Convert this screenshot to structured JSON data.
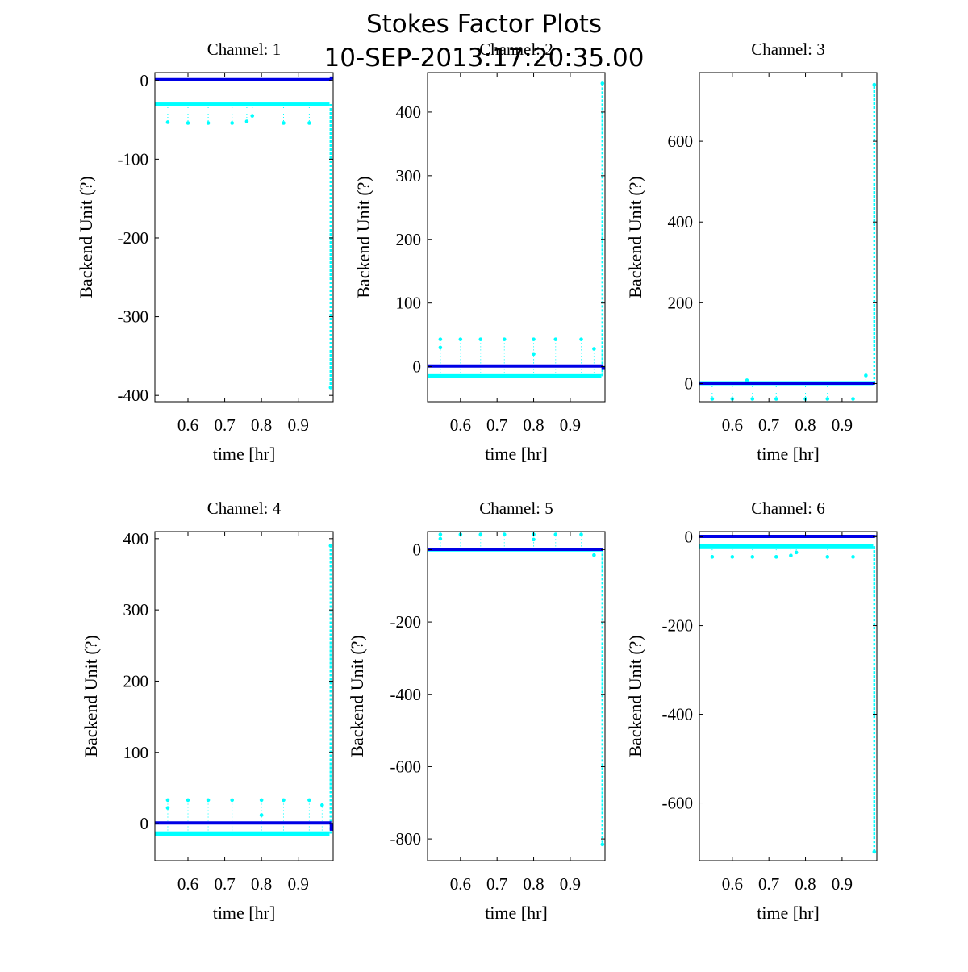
{
  "figure": {
    "title": "Stokes Factor Plots",
    "subtitle": "10-SEP-2013:17:20:35.00"
  },
  "colors": {
    "cyan_series": "#00ffff",
    "blue_series": "#0000e6",
    "axes": "#000000",
    "background": "#ffffff"
  },
  "chart_data": [
    {
      "type": "scatter",
      "title": "Channel: 1",
      "xlabel": "time [hr]",
      "ylabel": "Backend Unit (?)",
      "xlim": [
        0.51,
        0.995
      ],
      "ylim": [
        -408,
        10
      ],
      "xticks": [
        0.6,
        0.7,
        0.8,
        0.9
      ],
      "xtick_labels": [
        "0.6",
        "0.7",
        "0.8",
        "0.9"
      ],
      "yticks": [
        -400,
        -300,
        -200,
        -100,
        0
      ],
      "ytick_labels": [
        "-400",
        "-300",
        "-200",
        "-100",
        "0"
      ],
      "grid": false,
      "series": [
        {
          "color": "cyan",
          "band": [
            -31,
            -29
          ],
          "blips": [
            [
              0.545,
              -53
            ],
            [
              0.6,
              -54
            ],
            [
              0.655,
              -54
            ],
            [
              0.72,
              -54
            ],
            [
              0.76,
              -52
            ],
            [
              0.775,
              -45
            ],
            [
              0.86,
              -54
            ],
            [
              0.93,
              -54
            ]
          ],
          "drop": [
            0.988,
            -390
          ]
        },
        {
          "color": "blue",
          "level": 1,
          "end": [
            0.99,
            5
          ]
        }
      ]
    },
    {
      "type": "scatter",
      "title": "Channel: 2",
      "xlabel": "time [hr]",
      "ylabel": "Backend Unit (?)",
      "xlim": [
        0.51,
        0.995
      ],
      "ylim": [
        -55,
        462
      ],
      "xticks": [
        0.6,
        0.7,
        0.8,
        0.9
      ],
      "xtick_labels": [
        "0.6",
        "0.7",
        "0.8",
        "0.9"
      ],
      "yticks": [
        0,
        100,
        200,
        300,
        400
      ],
      "ytick_labels": [
        "0",
        "100",
        "200",
        "300",
        "400"
      ],
      "grid": false,
      "series": [
        {
          "color": "cyan",
          "band": [
            -17,
            -13
          ],
          "blips": [
            [
              0.545,
              43
            ],
            [
              0.6,
              43
            ],
            [
              0.655,
              43
            ],
            [
              0.72,
              43
            ],
            [
              0.8,
              43
            ],
            [
              0.86,
              43
            ],
            [
              0.93,
              43
            ],
            [
              0.545,
              30
            ],
            [
              0.8,
              20
            ],
            [
              0.965,
              28
            ]
          ],
          "drop": [
            0.988,
            445
          ]
        },
        {
          "color": "blue",
          "level": 1,
          "end": [
            0.99,
            -5
          ]
        }
      ]
    },
    {
      "type": "scatter",
      "title": "Channel: 3",
      "xlabel": "time [hr]",
      "ylabel": "Backend Unit (?)",
      "xlim": [
        0.51,
        0.995
      ],
      "ylim": [
        -45,
        770
      ],
      "xticks": [
        0.6,
        0.7,
        0.8,
        0.9
      ],
      "xtick_labels": [
        "0.6",
        "0.7",
        "0.8",
        "0.9"
      ],
      "yticks": [
        0,
        200,
        400,
        600
      ],
      "ytick_labels": [
        "0",
        "200",
        "400",
        "600"
      ],
      "grid": false,
      "series": [
        {
          "color": "cyan",
          "band": [
            -2,
            4
          ],
          "blips": [
            [
              0.545,
              -38
            ],
            [
              0.6,
              -38
            ],
            [
              0.655,
              -38
            ],
            [
              0.72,
              -38
            ],
            [
              0.8,
              -38
            ],
            [
              0.86,
              -38
            ],
            [
              0.93,
              -38
            ],
            [
              0.64,
              8
            ],
            [
              0.965,
              20
            ]
          ],
          "drop": [
            0.988,
            740
          ]
        },
        {
          "color": "blue",
          "level": 1,
          "end": [
            0.99,
            1
          ]
        }
      ]
    },
    {
      "type": "scatter",
      "title": "Channel: 4",
      "xlabel": "time [hr]",
      "ylabel": "Backend Unit (?)",
      "xlim": [
        0.51,
        0.995
      ],
      "ylim": [
        -52,
        410
      ],
      "xticks": [
        0.6,
        0.7,
        0.8,
        0.9
      ],
      "xtick_labels": [
        "0.6",
        "0.7",
        "0.8",
        "0.9"
      ],
      "yticks": [
        0,
        100,
        200,
        300,
        400
      ],
      "ytick_labels": [
        "0",
        "100",
        "200",
        "300",
        "400"
      ],
      "grid": false,
      "series": [
        {
          "color": "cyan",
          "band": [
            -16,
            -12
          ],
          "blips": [
            [
              0.545,
              33
            ],
            [
              0.6,
              33
            ],
            [
              0.655,
              33
            ],
            [
              0.72,
              33
            ],
            [
              0.8,
              33
            ],
            [
              0.86,
              33
            ],
            [
              0.93,
              33
            ],
            [
              0.545,
              22
            ],
            [
              0.8,
              12
            ],
            [
              0.965,
              26
            ]
          ],
          "drop": [
            0.988,
            390
          ]
        },
        {
          "color": "blue",
          "level": 1,
          "end": [
            0.99,
            -10
          ]
        }
      ]
    },
    {
      "type": "scatter",
      "title": "Channel: 5",
      "xlabel": "time [hr]",
      "ylabel": "Backend Unit (?)",
      "xlim": [
        0.51,
        0.995
      ],
      "ylim": [
        -860,
        50
      ],
      "xticks": [
        0.6,
        0.7,
        0.8,
        0.9
      ],
      "xtick_labels": [
        "0.6",
        "0.7",
        "0.8",
        "0.9"
      ],
      "yticks": [
        -800,
        -600,
        -400,
        -200,
        0
      ],
      "ytick_labels": [
        "-800",
        "-600",
        "-400",
        "-200",
        "0"
      ],
      "grid": false,
      "series": [
        {
          "color": "cyan",
          "band": [
            -3,
            3
          ],
          "blips": [
            [
              0.545,
              42
            ],
            [
              0.6,
              42
            ],
            [
              0.655,
              42
            ],
            [
              0.72,
              42
            ],
            [
              0.8,
              42
            ],
            [
              0.86,
              42
            ],
            [
              0.93,
              42
            ],
            [
              0.545,
              30
            ],
            [
              0.8,
              28
            ],
            [
              0.965,
              -15
            ]
          ],
          "drop": [
            0.988,
            -815
          ]
        },
        {
          "color": "blue",
          "level": 1,
          "end": [
            0.99,
            0
          ]
        }
      ]
    },
    {
      "type": "scatter",
      "title": "Channel: 6",
      "xlabel": "time [hr]",
      "ylabel": "Backend Unit (?)",
      "xlim": [
        0.51,
        0.995
      ],
      "ylim": [
        -730,
        12
      ],
      "xticks": [
        0.6,
        0.7,
        0.8,
        0.9
      ],
      "xtick_labels": [
        "0.6",
        "0.7",
        "0.8",
        "0.9"
      ],
      "yticks": [
        -600,
        -400,
        -200,
        0
      ],
      "ytick_labels": [
        "-600",
        "-400",
        "-200",
        "0"
      ],
      "grid": false,
      "series": [
        {
          "color": "cyan",
          "band": [
            -24,
            -18
          ],
          "blips": [
            [
              0.545,
              -45
            ],
            [
              0.6,
              -45
            ],
            [
              0.655,
              -45
            ],
            [
              0.72,
              -45
            ],
            [
              0.76,
              -42
            ],
            [
              0.775,
              -35
            ],
            [
              0.86,
              -45
            ],
            [
              0.93,
              -45
            ]
          ],
          "drop": [
            0.988,
            -710
          ]
        },
        {
          "color": "blue",
          "level": 1,
          "end": [
            0.99,
            4
          ]
        }
      ]
    }
  ]
}
